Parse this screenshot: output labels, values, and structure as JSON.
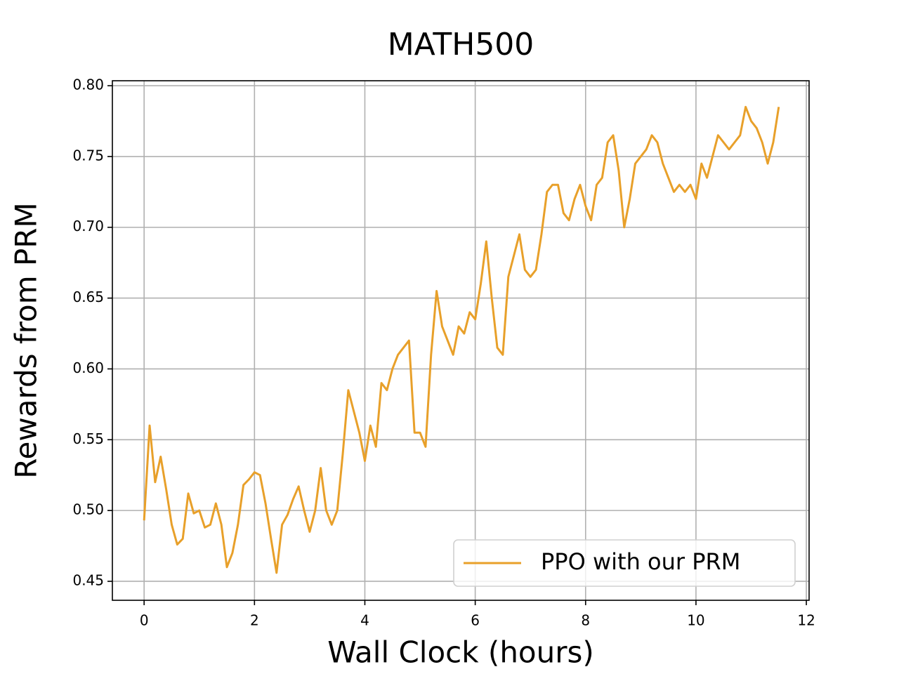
{
  "chart_data": {
    "type": "line",
    "title": "MATH500",
    "xlabel": "Wall Clock (hours)",
    "ylabel": "Rewards from PRM",
    "x": [
      0.0,
      0.1,
      0.2,
      0.3,
      0.4,
      0.5,
      0.6,
      0.7,
      0.8,
      0.9,
      1.0,
      1.1,
      1.2,
      1.3,
      1.4,
      1.5,
      1.6,
      1.7,
      1.8,
      1.9,
      2.0,
      2.1,
      2.2,
      2.3,
      2.4,
      2.5,
      2.6,
      2.7,
      2.8,
      2.9,
      3.0,
      3.1,
      3.2,
      3.3,
      3.4,
      3.5,
      3.6,
      3.7,
      3.8,
      3.9,
      4.0,
      4.1,
      4.2,
      4.3,
      4.4,
      4.5,
      4.6,
      4.7,
      4.8,
      4.9,
      5.0,
      5.1,
      5.2,
      5.3,
      5.4,
      5.5,
      5.6,
      5.7,
      5.8,
      5.9,
      6.0,
      6.1,
      6.2,
      6.3,
      6.4,
      6.5,
      6.6,
      6.7,
      6.8,
      6.9,
      7.0,
      7.1,
      7.2,
      7.3,
      7.4,
      7.5,
      7.6,
      7.7,
      7.8,
      7.9,
      8.0,
      8.1,
      8.2,
      8.3,
      8.4,
      8.5,
      8.6,
      8.7,
      8.8,
      8.9,
      9.0,
      9.1,
      9.2,
      9.3,
      9.4,
      9.5,
      9.6,
      9.7,
      9.8,
      9.9,
      10.0,
      10.1,
      10.2,
      10.3,
      10.4,
      10.5,
      10.6,
      10.7,
      10.8,
      10.9,
      11.0,
      11.1,
      11.2,
      11.3,
      11.4,
      11.5
    ],
    "series": [
      {
        "name": "PPO with our PRM",
        "color": "#e8a02a",
        "values": [
          0.493,
          0.56,
          0.52,
          0.538,
          0.515,
          0.49,
          0.476,
          0.48,
          0.512,
          0.498,
          0.5,
          0.488,
          0.49,
          0.505,
          0.49,
          0.46,
          0.47,
          0.49,
          0.518,
          0.522,
          0.527,
          0.525,
          0.505,
          0.48,
          0.456,
          0.49,
          0.497,
          0.508,
          0.517,
          0.5,
          0.485,
          0.5,
          0.53,
          0.5,
          0.49,
          0.5,
          0.54,
          0.585,
          0.57,
          0.555,
          0.535,
          0.56,
          0.545,
          0.59,
          0.585,
          0.6,
          0.61,
          0.615,
          0.62,
          0.555,
          0.555,
          0.545,
          0.61,
          0.655,
          0.63,
          0.62,
          0.61,
          0.63,
          0.625,
          0.64,
          0.635,
          0.66,
          0.69,
          0.65,
          0.615,
          0.61,
          0.665,
          0.68,
          0.695,
          0.67,
          0.665,
          0.67,
          0.695,
          0.725,
          0.73,
          0.73,
          0.71,
          0.705,
          0.72,
          0.73,
          0.715,
          0.705,
          0.73,
          0.735,
          0.76,
          0.765,
          0.74,
          0.7,
          0.72,
          0.745,
          0.75,
          0.755,
          0.765,
          0.76,
          0.745,
          0.735,
          0.725,
          0.73,
          0.725,
          0.73,
          0.72,
          0.745,
          0.735,
          0.75,
          0.765,
          0.76,
          0.755,
          0.76,
          0.765,
          0.785,
          0.775,
          0.77,
          0.76,
          0.745,
          0.76,
          0.785
        ]
      }
    ],
    "xlim": [
      -0.575,
      12.05
    ],
    "ylim": [
      0.4366,
      0.8035
    ],
    "xticks": [
      0,
      2,
      4,
      6,
      8,
      10,
      12
    ],
    "yticks": [
      {
        "value": 0.45,
        "label": "0.45"
      },
      {
        "value": 0.5,
        "label": "0.50"
      },
      {
        "value": 0.55,
        "label": "0.55"
      },
      {
        "value": 0.6,
        "label": "0.60"
      },
      {
        "value": 0.65,
        "label": "0.65"
      },
      {
        "value": 0.7,
        "label": "0.70"
      },
      {
        "value": 0.75,
        "label": "0.75"
      },
      {
        "value": 0.8,
        "label": "0.80"
      }
    ],
    "grid": true,
    "legend": "lower right"
  }
}
